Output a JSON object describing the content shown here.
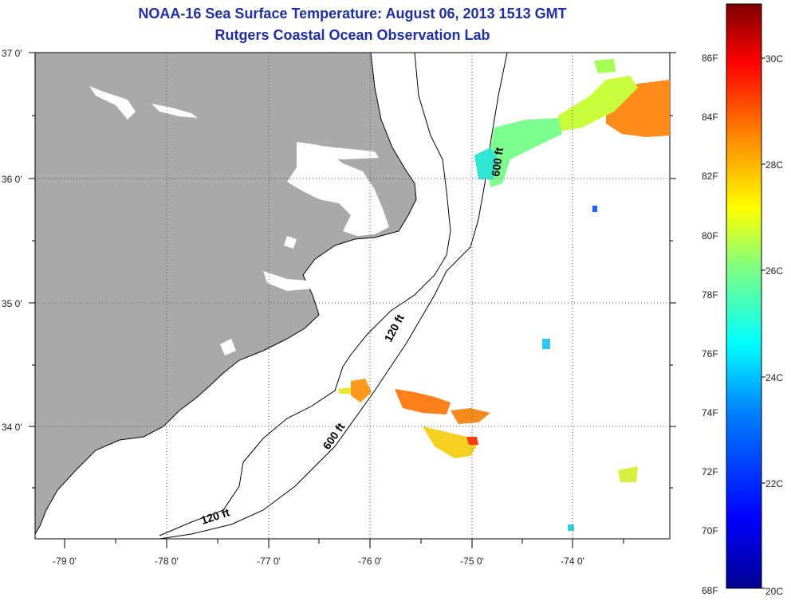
{
  "title_line1": "NOAA-16 Sea Surface Temperature:  August 06, 2013 1513 GMT",
  "title_line2": "Rutgers Coastal Ocean Observation Lab",
  "lat_labels": [
    "37 0'",
    "36 0'",
    "35 0'",
    "34 0'"
  ],
  "lon_labels": [
    "-79 0'",
    "-78 0'",
    "-77 0'",
    "-76 0'",
    "-75 0'",
    "-74 0'"
  ],
  "contour_labels": [
    "600 ft",
    "120 ft",
    "600 ft",
    "120 ft"
  ],
  "colorbar": {
    "fahrenheit": [
      "86F",
      "84F",
      "82F",
      "80F",
      "78F",
      "76F",
      "74F",
      "72F",
      "70F",
      "68F"
    ],
    "celsius": [
      "30C",
      "28C",
      "26C",
      "24C",
      "22C",
      "20C"
    ]
  },
  "colors": {
    "land": "#a9a9a9",
    "ocean": "#ffffff",
    "title": "#1f2f9f"
  }
}
